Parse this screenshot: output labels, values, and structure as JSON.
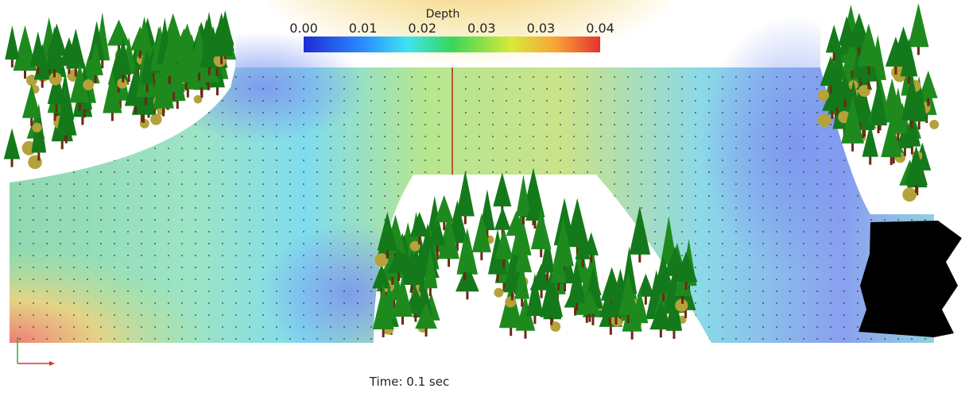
{
  "colorbar": {
    "title": "Depth",
    "tick_labels": [
      "0.00",
      "0.01",
      "0.02",
      "0.03",
      "0.03",
      "0.04"
    ]
  },
  "time_label": "Time: 0.1 sec"
}
